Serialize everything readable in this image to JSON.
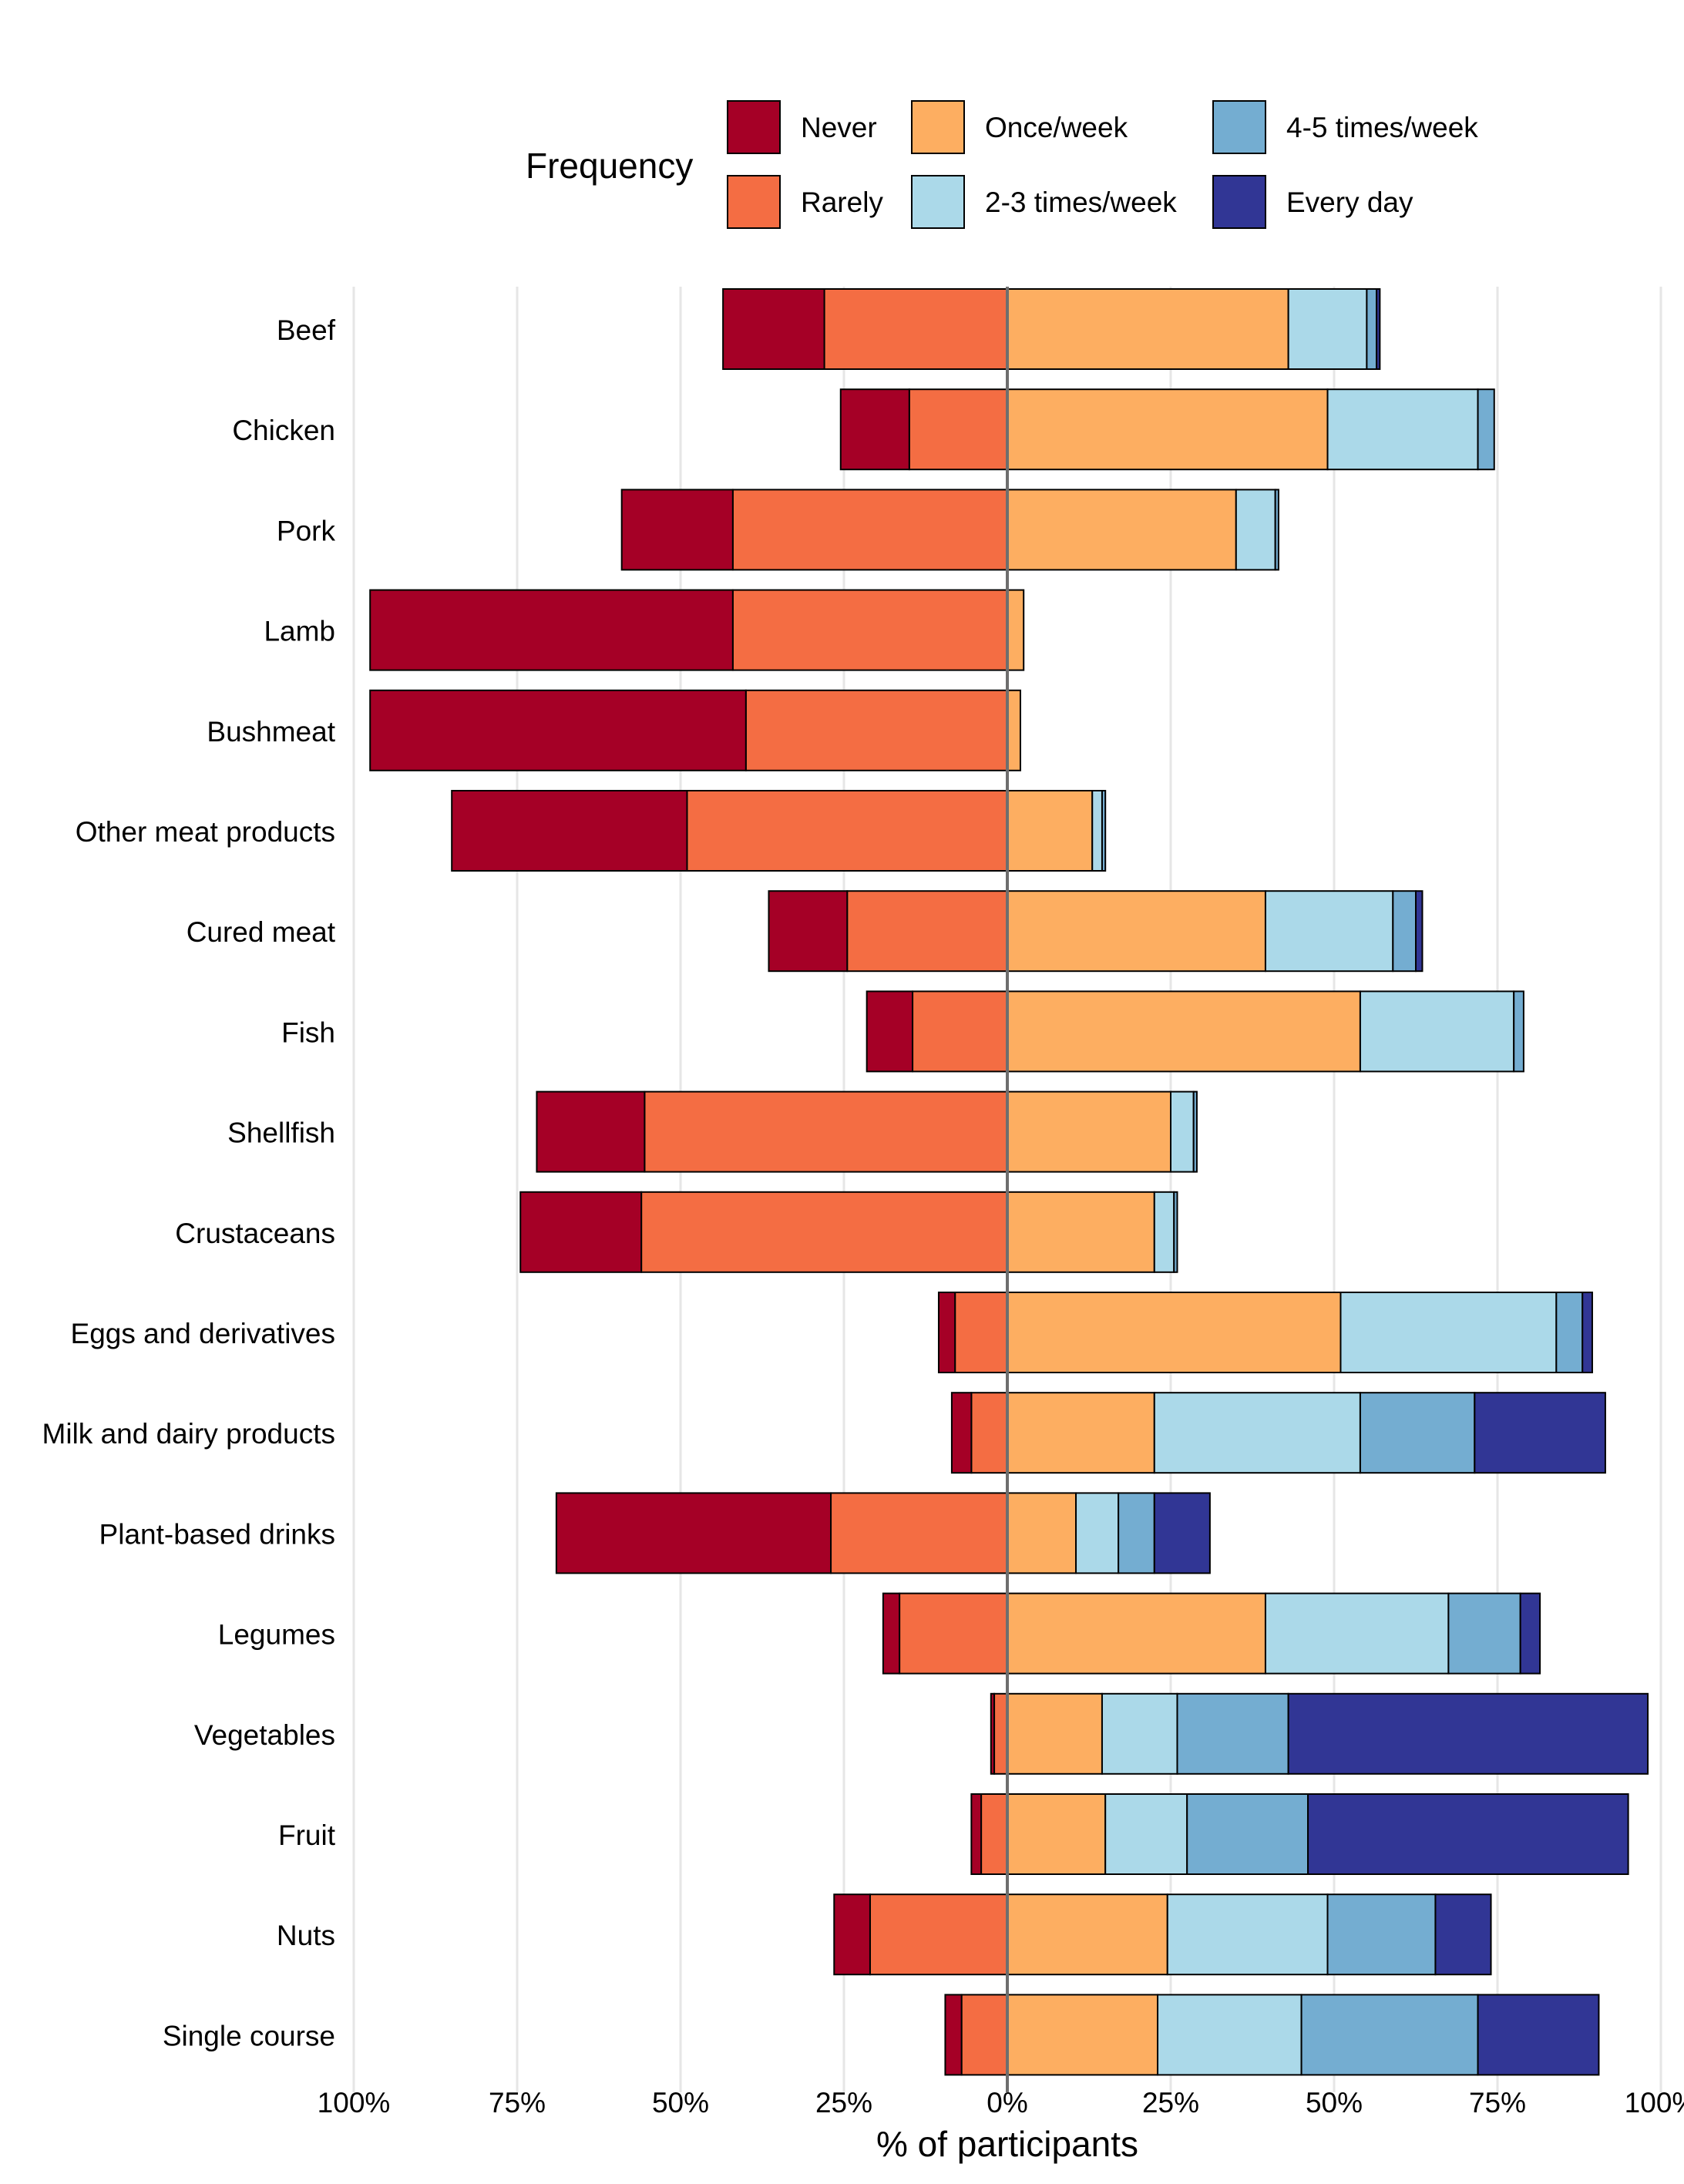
{
  "chart_data": {
    "type": "bar",
    "orientation": "horizontal",
    "stacking": "diverging",
    "xlabel": "% of participants",
    "ylabel": "",
    "xlim": [
      -100,
      100
    ],
    "xticks": [
      {
        "value": -100,
        "label": "100%"
      },
      {
        "value": -75,
        "label": "75%"
      },
      {
        "value": -50,
        "label": "50%"
      },
      {
        "value": -25,
        "label": "25%"
      },
      {
        "value": 0,
        "label": "0%"
      },
      {
        "value": 25,
        "label": "25%"
      },
      {
        "value": 50,
        "label": "50%"
      },
      {
        "value": 75,
        "label": "75%"
      },
      {
        "value": 100,
        "label": "100%"
      }
    ],
    "legend": {
      "title": "Frequency",
      "position": "top",
      "entries": [
        {
          "name": "Never",
          "color": "#a50026"
        },
        {
          "name": "Rarely",
          "color": "#f46d43"
        },
        {
          "name": "Once/week",
          "color": "#fdae61"
        },
        {
          "name": "2-3 times/week",
          "color": "#abd9e9"
        },
        {
          "name": "4-5 times/week",
          "color": "#74add1"
        },
        {
          "name": "Every day",
          "color": "#313695"
        }
      ]
    },
    "categories": [
      "Beef",
      "Chicken",
      "Pork",
      "Lamb",
      "Bushmeat",
      "Other meat products",
      "Cured meat",
      "Fish",
      "Shellfish",
      "Crustaceans",
      "Eggs and derivatives",
      "Milk and dairy products",
      "Plant-based drinks",
      "Legumes",
      "Vegetables",
      "Fruit",
      "Nuts",
      "Single course"
    ],
    "series": [
      {
        "name": "Never",
        "side": "negative",
        "values": [
          15.5,
          10.5,
          17,
          55.5,
          57.5,
          36,
          12,
          7,
          16.5,
          18.5,
          2.5,
          3,
          42,
          2.5,
          0.5,
          1.5,
          5.5,
          2.5
        ]
      },
      {
        "name": "Rarely",
        "side": "negative",
        "values": [
          28,
          15,
          42,
          42,
          40,
          49,
          24.5,
          14.5,
          55.5,
          56,
          8,
          5.5,
          27,
          16.5,
          2,
          4,
          21,
          7
        ]
      },
      {
        "name": "Once/week",
        "side": "positive",
        "values": [
          43,
          49,
          35,
          2.5,
          2,
          13,
          39.5,
          54,
          25,
          22.5,
          51,
          22.5,
          10.5,
          39.5,
          14.5,
          15,
          24.5,
          23
        ]
      },
      {
        "name": "2-3 times/week",
        "side": "positive",
        "values": [
          12,
          23,
          6,
          0,
          0,
          1.5,
          19.5,
          23.5,
          3.5,
          3,
          33,
          31.5,
          6.5,
          28,
          11.5,
          12.5,
          24.5,
          22
        ]
      },
      {
        "name": "4-5 times/week",
        "side": "positive",
        "values": [
          1.5,
          2.5,
          0.5,
          0,
          0,
          0.5,
          3.5,
          1.5,
          0.5,
          0.5,
          4,
          17.5,
          5.5,
          11,
          17,
          18.5,
          16.5,
          27
        ]
      },
      {
        "name": "Every day",
        "side": "positive",
        "values": [
          0.5,
          0,
          0,
          0,
          0,
          0,
          1,
          0,
          0,
          0,
          1.5,
          20,
          8.5,
          3,
          55,
          49,
          8.5,
          18.5
        ]
      }
    ]
  }
}
